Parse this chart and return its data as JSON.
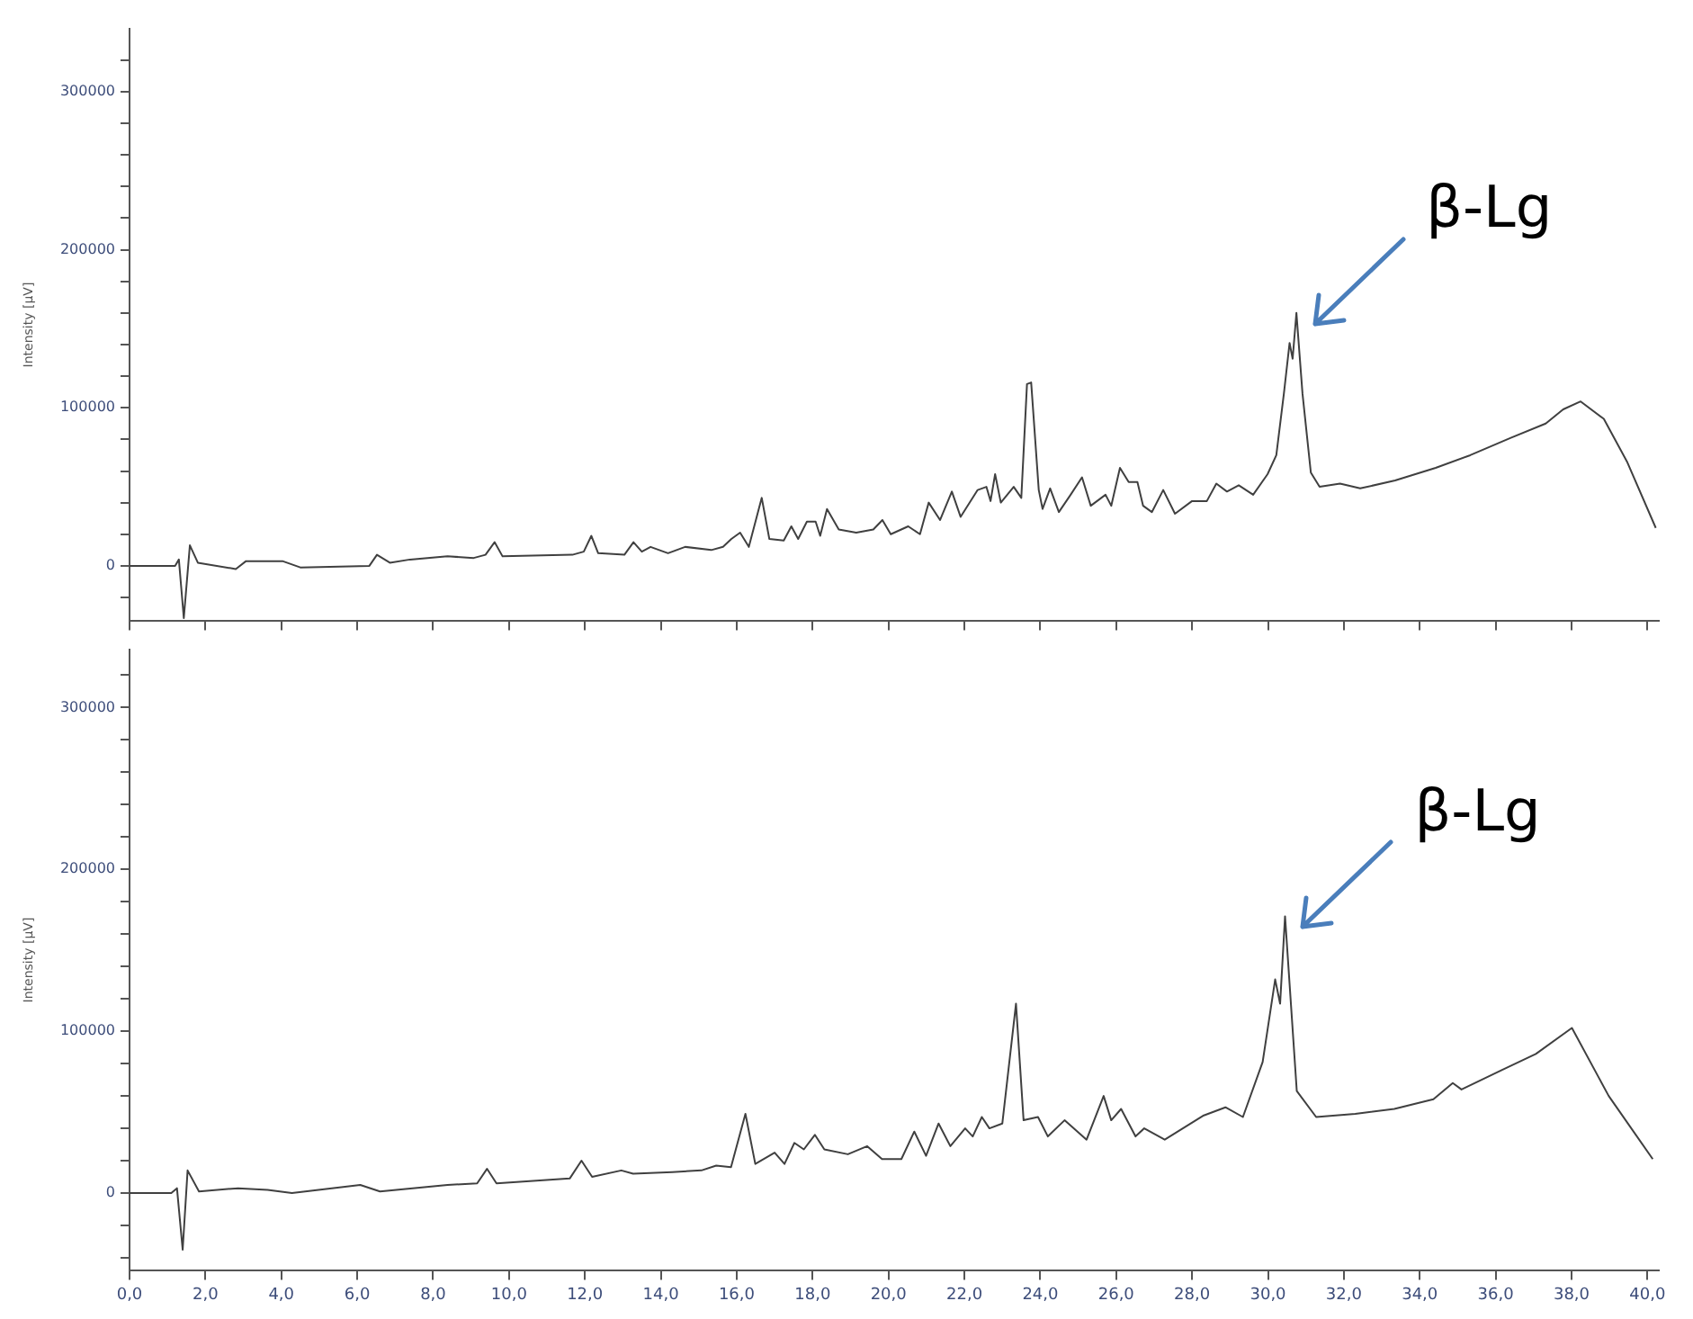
{
  "chart_data": [
    {
      "type": "line",
      "ylabel": "Intensity [µV]",
      "color": "#404040",
      "xlim": [
        0,
        40.3
      ],
      "ylim": [
        -35000,
        340000
      ],
      "tick_labels": "y",
      "xticks": [
        0,
        2,
        4,
        6,
        8,
        10,
        12,
        14,
        16,
        18,
        20,
        22,
        24,
        26,
        28,
        30,
        32,
        34,
        36,
        38,
        40
      ],
      "yticks": [
        {
          "value": -20000,
          "label": null
        },
        0,
        {
          "value": 20000,
          "label": null
        },
        {
          "value": 40000,
          "label": null
        },
        {
          "value": 60000,
          "label": null
        },
        {
          "value": 80000,
          "label": null
        },
        100000,
        {
          "value": 120000,
          "label": null
        },
        {
          "value": 140000,
          "label": null
        },
        {
          "value": 160000,
          "label": null
        },
        {
          "value": 180000,
          "label": null
        },
        200000,
        {
          "value": 220000,
          "label": null
        },
        {
          "value": 240000,
          "label": null
        },
        {
          "value": 260000,
          "label": null
        },
        {
          "value": 280000,
          "label": null
        },
        300000,
        {
          "value": 320000,
          "label": null
        }
      ],
      "x": [
        0,
        1.2,
        1.3,
        1.43,
        1.59,
        1.8,
        2.8,
        3.07,
        4.03,
        4.5,
        6.32,
        6.52,
        6.86,
        7.39,
        8.38,
        9.07,
        9.38,
        9.62,
        9.83,
        11.67,
        11.97,
        12.17,
        12.35,
        13.04,
        13.28,
        13.5,
        13.73,
        14.19,
        14.64,
        15.33,
        15.64,
        15.86,
        16.09,
        16.32,
        16.66,
        16.86,
        17.24,
        17.44,
        17.62,
        17.85,
        18.08,
        18.2,
        18.38,
        18.69,
        19.15,
        19.6,
        19.84,
        20.06,
        20.52,
        20.83,
        21.06,
        21.36,
        21.67,
        21.9,
        22.35,
        22.58,
        22.69,
        22.81,
        22.96,
        23.3,
        23.5,
        23.65,
        23.76,
        23.96,
        24.06,
        24.26,
        24.49,
        24.8,
        25.1,
        25.33,
        25.72,
        25.87,
        26.1,
        26.33,
        26.56,
        26.71,
        26.94,
        27.24,
        27.55,
        28.0,
        28.39,
        28.64,
        28.92,
        29.23,
        29.61,
        29.99,
        30.22,
        30.42,
        30.57,
        30.65,
        30.75,
        30.91,
        31.13,
        31.36,
        31.9,
        32.43,
        33.35,
        34.42,
        35.33,
        36.4,
        37.32,
        37.78,
        38.24,
        38.85,
        39.46,
        40.22
      ],
      "values": [
        0,
        0,
        4000,
        -33000,
        13000,
        2000,
        -2000,
        3000,
        3000,
        -1000,
        0,
        7000,
        2000,
        4000,
        6000,
        5000,
        7000,
        15000,
        6000,
        7000,
        9000,
        19000,
        8000,
        7000,
        15000,
        9000,
        12000,
        8000,
        12000,
        10000,
        12000,
        17000,
        21000,
        12000,
        43000,
        17000,
        16000,
        25000,
        17000,
        28000,
        28000,
        19000,
        36000,
        23000,
        21000,
        23000,
        29000,
        20000,
        25000,
        20000,
        40000,
        29000,
        47000,
        31000,
        48000,
        50000,
        41000,
        58000,
        40000,
        50000,
        43000,
        115000,
        116000,
        48000,
        36000,
        49000,
        34000,
        45000,
        56000,
        38000,
        45000,
        38000,
        62000,
        53000,
        53000,
        38000,
        34000,
        48000,
        33000,
        41000,
        41000,
        52000,
        47000,
        51000,
        45000,
        58000,
        70000,
        109000,
        141000,
        131000,
        160000,
        109000,
        59000,
        50000,
        52000,
        49000,
        54000,
        62000,
        70000,
        81000,
        90000,
        99000,
        104000,
        93000,
        66000,
        24000
      ],
      "annotations": [
        {
          "text": "β-Lg",
          "x": 30.75,
          "y": 160000
        }
      ]
    },
    {
      "type": "line",
      "ylabel": "Intensity [µV]",
      "color": "#404040",
      "xlim": [
        0,
        40.3
      ],
      "ylim": [
        -48000,
        336000
      ],
      "xticks": [
        {
          "value": 0,
          "label": "0,0"
        },
        {
          "value": 2,
          "label": "2,0"
        },
        {
          "value": 4,
          "label": "4,0"
        },
        {
          "value": 6,
          "label": "6,0"
        },
        {
          "value": 8,
          "label": "8,0"
        },
        {
          "value": 10,
          "label": "10,0"
        },
        {
          "value": 12,
          "label": "12,0"
        },
        {
          "value": 14,
          "label": "14,0"
        },
        {
          "value": 16,
          "label": "16,0"
        },
        {
          "value": 18,
          "label": "18,0"
        },
        {
          "value": 20,
          "label": "20,0"
        },
        {
          "value": 22,
          "label": "22,0"
        },
        {
          "value": 24,
          "label": "24,0"
        },
        {
          "value": 26,
          "label": "26,0"
        },
        {
          "value": 28,
          "label": "28,0"
        },
        {
          "value": 30,
          "label": "30,0"
        },
        {
          "value": 32,
          "label": "32,0"
        },
        {
          "value": 34,
          "label": "34,0"
        },
        {
          "value": 36,
          "label": "36,0"
        },
        {
          "value": 38,
          "label": "38,0"
        },
        {
          "value": 40,
          "label": "40,0"
        }
      ],
      "yticks": [
        {
          "value": -40000,
          "label": null
        },
        {
          "value": -20000,
          "label": null
        },
        0,
        {
          "value": 20000,
          "label": null
        },
        {
          "value": 40000,
          "label": null
        },
        {
          "value": 60000,
          "label": null
        },
        {
          "value": 80000,
          "label": null
        },
        100000,
        {
          "value": 120000,
          "label": null
        },
        {
          "value": 140000,
          "label": null
        },
        {
          "value": 160000,
          "label": null
        },
        {
          "value": 180000,
          "label": null
        },
        200000,
        {
          "value": 220000,
          "label": null
        },
        {
          "value": 240000,
          "label": null
        },
        {
          "value": 260000,
          "label": null
        },
        {
          "value": 280000,
          "label": null
        },
        300000,
        {
          "value": 320000,
          "label": null
        }
      ],
      "x": [
        0,
        1.1,
        1.25,
        1.4,
        1.53,
        1.83,
        2.86,
        3.64,
        4.28,
        6.08,
        6.6,
        8.38,
        9.16,
        9.42,
        9.67,
        11.6,
        11.91,
        12.19,
        12.96,
        13.27,
        14.3,
        15.07,
        15.46,
        15.85,
        16.23,
        16.49,
        17.0,
        17.26,
        17.52,
        17.77,
        18.06,
        18.31,
        18.93,
        19.44,
        19.83,
        20.34,
        20.68,
        20.99,
        21.32,
        21.63,
        22.02,
        22.22,
        22.46,
        22.66,
        23.0,
        23.36,
        23.56,
        23.94,
        24.2,
        24.64,
        25.22,
        25.67,
        25.87,
        26.13,
        26.51,
        26.74,
        27.28,
        28.31,
        28.88,
        29.34,
        29.86,
        30.19,
        30.32,
        30.45,
        30.76,
        31.27,
        32.3,
        33.33,
        34.36,
        34.87,
        35.1,
        36.16,
        37.06,
        38.01,
        38.98,
        40.14
      ],
      "values": [
        0,
        0,
        3000,
        -35000,
        14000,
        1000,
        3000,
        2000,
        0,
        5000,
        1000,
        5000,
        6000,
        15000,
        6000,
        9000,
        20000,
        10000,
        14000,
        12000,
        13000,
        14000,
        17000,
        16000,
        49000,
        18000,
        25000,
        18000,
        31000,
        27000,
        36000,
        27000,
        24000,
        29000,
        21000,
        21000,
        38000,
        23000,
        43000,
        29000,
        40000,
        35000,
        47000,
        40000,
        43000,
        117000,
        45000,
        47000,
        35000,
        45000,
        33000,
        60000,
        45000,
        52000,
        35000,
        40000,
        33000,
        48000,
        53000,
        47000,
        81000,
        132000,
        117000,
        171000,
        63000,
        47000,
        49000,
        52000,
        58000,
        68000,
        64000,
        76000,
        86000,
        102000,
        60000,
        21000
      ],
      "annotations": [
        {
          "text": "β-Lg",
          "x": 30.45,
          "y": 171000
        }
      ]
    }
  ]
}
